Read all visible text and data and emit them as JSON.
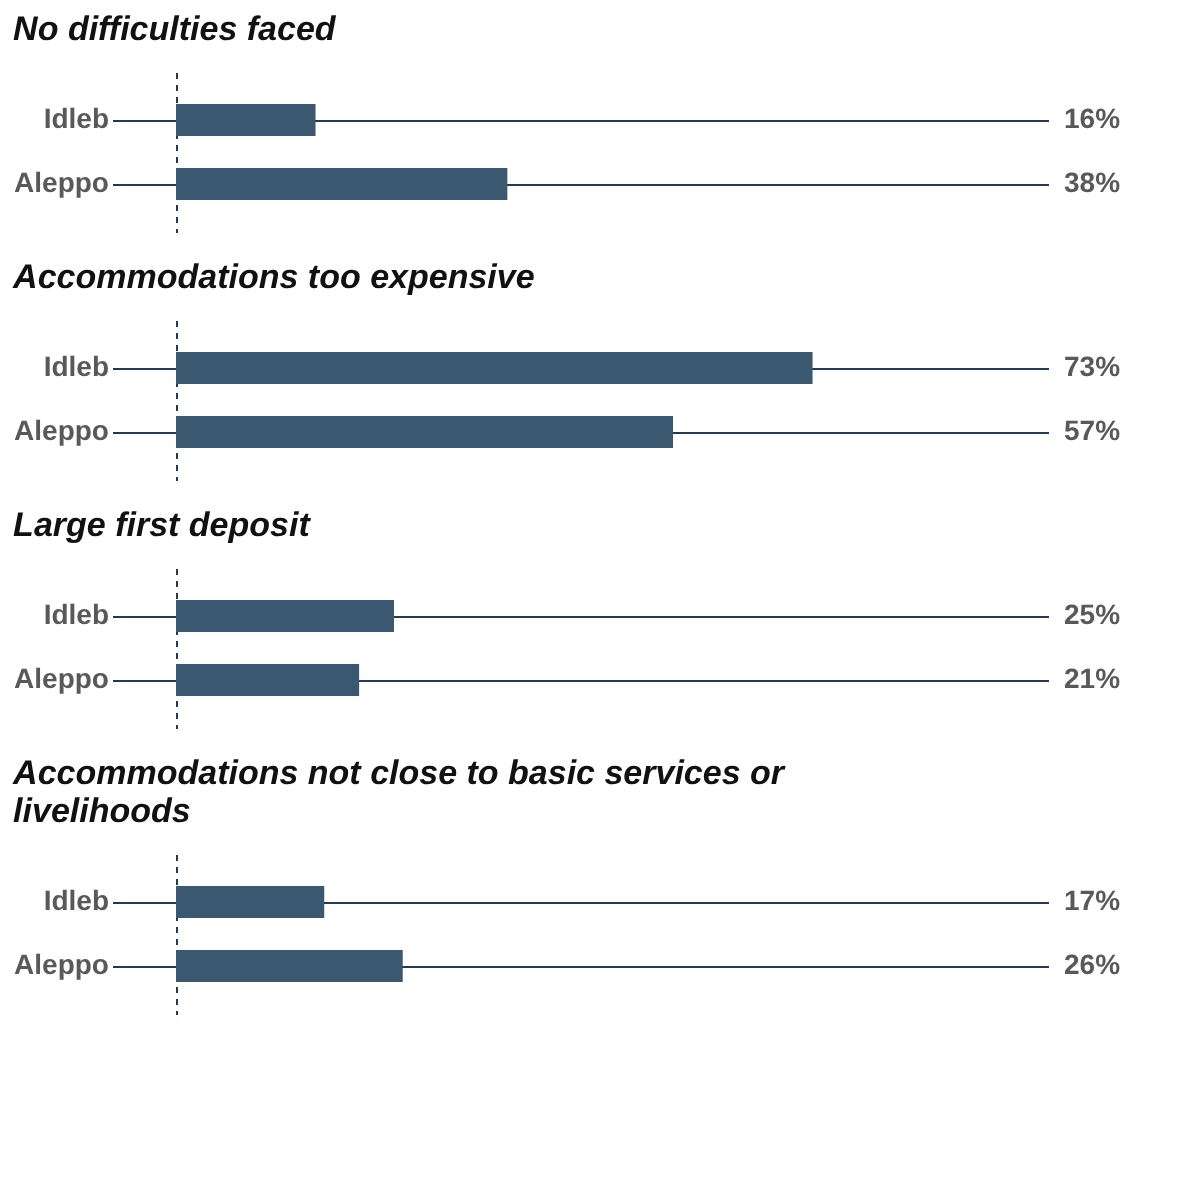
{
  "chart_data": [
    {
      "type": "bar",
      "orientation": "horizontal",
      "title": "No difficulties faced",
      "categories": [
        "Idleb",
        "Aleppo"
      ],
      "values": [
        16,
        38
      ],
      "value_labels": [
        "16%",
        "38%"
      ],
      "color": "#3a5870",
      "xlim": [
        0,
        100
      ],
      "grid": "y",
      "tick_labels": "y"
    },
    {
      "type": "bar",
      "orientation": "horizontal",
      "title": "Accommodations too expensive",
      "categories": [
        "Idleb",
        "Aleppo"
      ],
      "values": [
        73,
        57
      ],
      "value_labels": [
        "73%",
        "57%"
      ],
      "color": "#3a5870",
      "xlim": [
        0,
        100
      ],
      "grid": "y",
      "tick_labels": "y"
    },
    {
      "type": "bar",
      "orientation": "horizontal",
      "title": "Large first deposit",
      "categories": [
        "Idleb",
        "Aleppo"
      ],
      "values": [
        25,
        21
      ],
      "value_labels": [
        "25%",
        "21%"
      ],
      "color": "#3a5870",
      "xlim": [
        0,
        100
      ],
      "grid": "y",
      "tick_labels": "y"
    },
    {
      "type": "bar",
      "orientation": "horizontal",
      "title": "Accommodations not close to basic services or livelihoods",
      "categories": [
        "Idleb",
        "Aleppo"
      ],
      "values": [
        17,
        26
      ],
      "value_labels": [
        "17%",
        "26%"
      ],
      "color": "#3a5870",
      "xlim": [
        0,
        100
      ],
      "grid": "y",
      "tick_labels": "y"
    }
  ]
}
